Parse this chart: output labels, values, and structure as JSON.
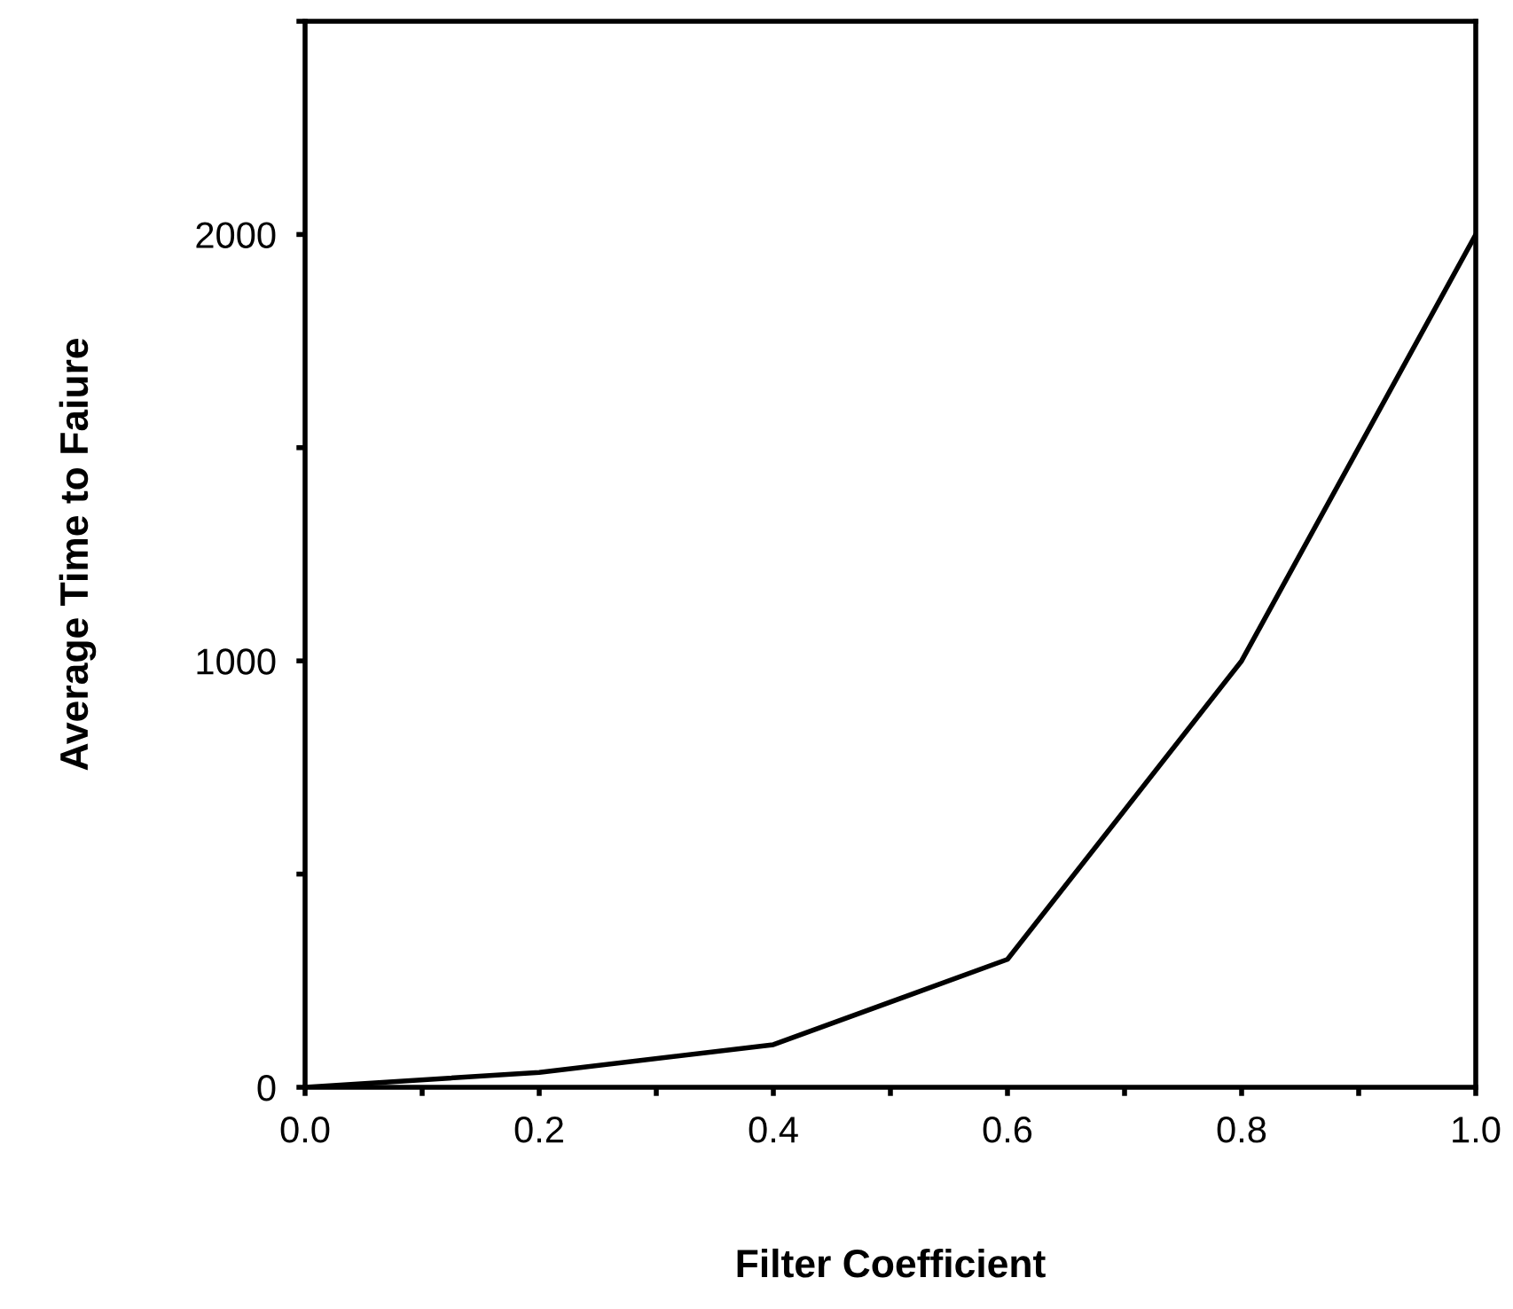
{
  "chart_data": {
    "type": "line",
    "xlabel": "Filter Coefficient",
    "ylabel": "Average Time to Faiure",
    "x": [
      0.0,
      0.2,
      0.4,
      0.6,
      0.8,
      1.0
    ],
    "series": [
      {
        "color": "#000000",
        "values": [
          0,
          35,
          100,
          300,
          1000,
          2000
        ]
      }
    ],
    "xlim": [
      0,
      1
    ],
    "ylim": [
      0,
      2500
    ],
    "xticks": [
      {
        "value": 0,
        "label": "0.0"
      },
      {
        "value": 0.1,
        "label": null
      },
      {
        "value": 0.2,
        "label": "0.2"
      },
      {
        "value": 0.3,
        "label": null
      },
      {
        "value": 0.4,
        "label": "0.4"
      },
      {
        "value": 0.5,
        "label": null
      },
      {
        "value": 0.6,
        "label": "0.6"
      },
      {
        "value": 0.7,
        "label": null
      },
      {
        "value": 0.8,
        "label": "0.8"
      },
      {
        "value": 0.9,
        "label": null
      },
      {
        "value": 1.0,
        "label": "1.0"
      }
    ],
    "yticks": [
      0,
      {
        "value": 500,
        "label": null
      },
      1000,
      {
        "value": 1500,
        "label": null
      },
      2000,
      {
        "value": 2500,
        "label": null
      }
    ],
    "grid": false,
    "legend": false,
    "marker": "none",
    "line_style": "solid"
  }
}
